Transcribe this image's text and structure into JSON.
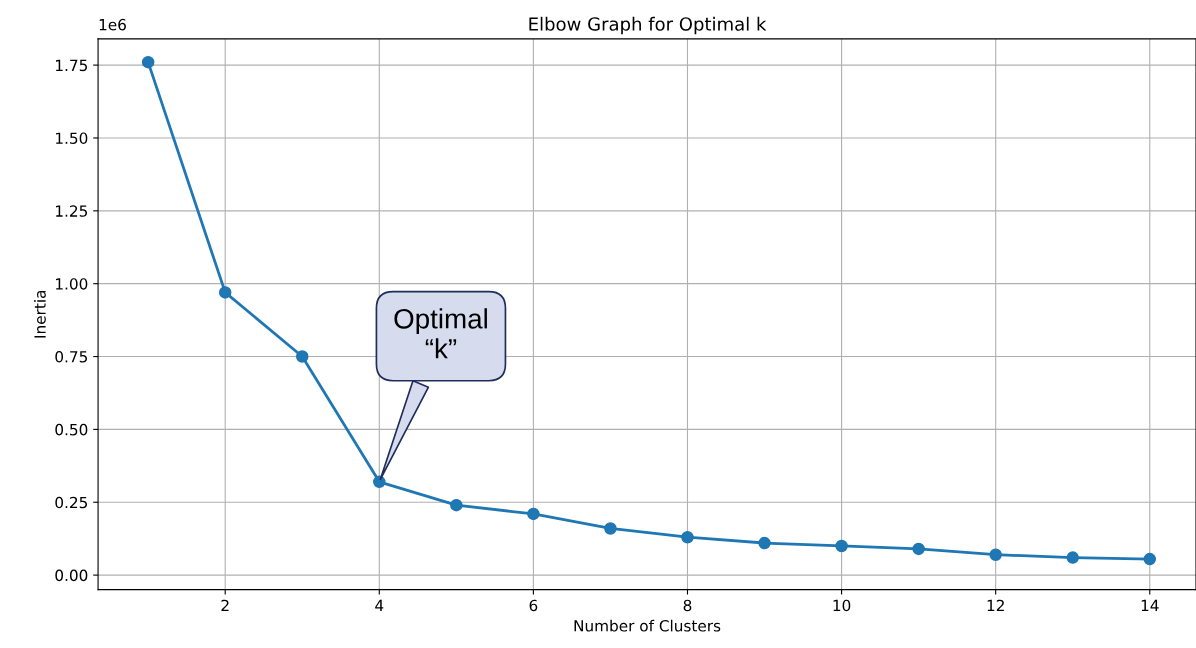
{
  "chart_data": {
    "type": "line",
    "title": "Elbow Graph for Optimal k",
    "xlabel": "Number of Clusters",
    "ylabel": "Inertia",
    "x": [
      1,
      2,
      3,
      4,
      5,
      6,
      7,
      8,
      9,
      10,
      11,
      12,
      13,
      14
    ],
    "series": [
      {
        "color": "#1f77b4",
        "values": [
          1.76,
          0.97,
          0.75,
          0.32,
          0.24,
          0.21,
          0.16,
          0.13,
          0.11,
          0.1,
          0.09,
          0.07,
          0.06,
          0.055
        ]
      }
    ],
    "marker": "circle",
    "line_style": "solid",
    "grid": true,
    "xlim": [
      0.35,
      14.6
    ],
    "xticks": [
      2,
      4,
      6,
      8,
      10,
      12,
      14
    ],
    "ylim": [
      -0.05,
      1.84
    ],
    "yticks": [
      {
        "value": 0,
        "label": "0.00"
      },
      {
        "value": 0.25,
        "label": "0.25"
      },
      {
        "value": 0.5,
        "label": "0.50"
      },
      {
        "value": 0.75,
        "label": "0.75"
      },
      {
        "value": 1.0,
        "label": "1.00"
      },
      {
        "value": 1.25,
        "label": "1.25"
      },
      {
        "value": 1.5,
        "label": "1.50"
      },
      {
        "value": 1.75,
        "label": "1.75"
      }
    ],
    "annotations": [
      "1e6",
      {
        "text": "Optimal\n“k”",
        "x": 4,
        "y": 0.32
      }
    ]
  }
}
